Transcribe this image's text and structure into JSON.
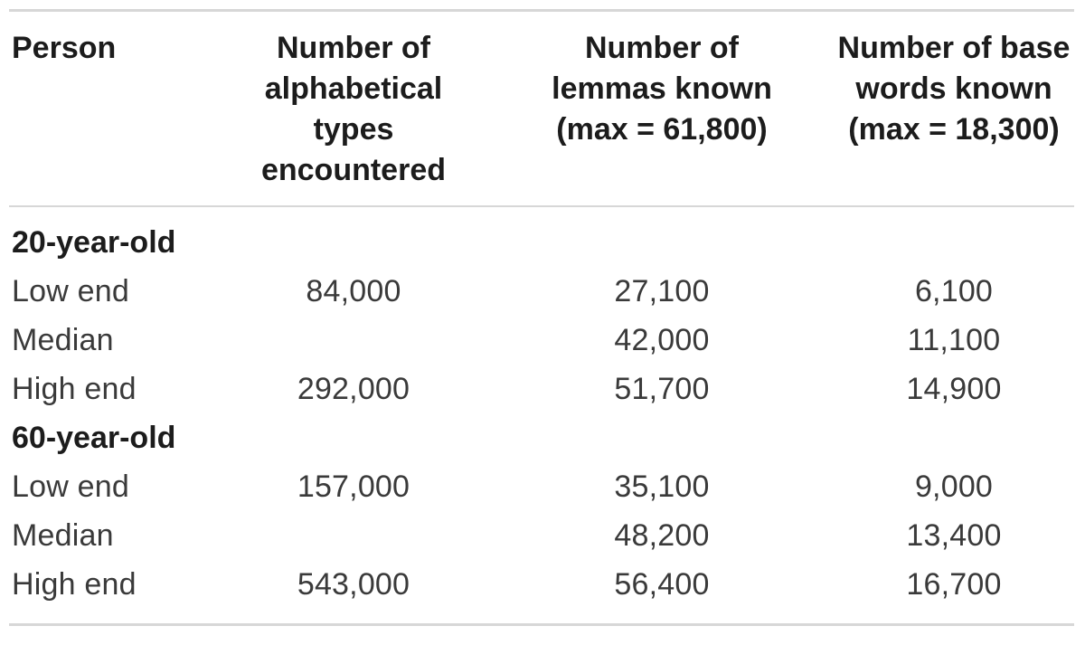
{
  "colors": {
    "background": "#ffffff",
    "rule_line": "#d7d7d7",
    "heading_text": "#1c1c1c",
    "body_text": "#3a3a3a"
  },
  "table": {
    "columns": [
      {
        "id": "person",
        "label": "Person",
        "lines": [
          "Person"
        ],
        "align": "left"
      },
      {
        "id": "alphabetical-types",
        "label": "Number of alphabetical types encountered",
        "lines": [
          "Number of",
          "alphabetical",
          "types",
          "encountered"
        ],
        "align": "center"
      },
      {
        "id": "lemmas-known",
        "label": "Number of lemmas known (max = 61,800)",
        "lines": [
          "Number of",
          "lemmas known",
          "(max = 61,800)"
        ],
        "align": "center"
      },
      {
        "id": "base-words-known",
        "label": "Number of base words known (max = 18,300)",
        "lines": [
          "Number of base",
          "words known",
          "(max = 18,300)"
        ],
        "align": "center"
      }
    ],
    "sections": [
      {
        "label": "20-year-old",
        "rows": [
          {
            "label": "Low end",
            "values": [
              "84,000",
              "27,100",
              "6,100"
            ]
          },
          {
            "label": "Median",
            "values": [
              "",
              "42,000",
              "11,100"
            ]
          },
          {
            "label": "High end",
            "values": [
              "292,000",
              "51,700",
              "14,900"
            ]
          }
        ]
      },
      {
        "label": "60-year-old",
        "rows": [
          {
            "label": "Low end",
            "values": [
              "157,000",
              "35,100",
              "9,000"
            ]
          },
          {
            "label": "Median",
            "values": [
              "",
              "48,200",
              "13,400"
            ]
          },
          {
            "label": "High end",
            "values": [
              "543,000",
              "56,400",
              "16,700"
            ]
          }
        ]
      }
    ]
  }
}
